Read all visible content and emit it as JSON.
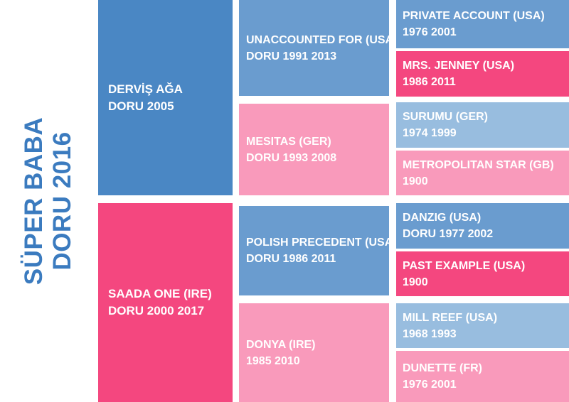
{
  "title": {
    "line1": "SÜPER BABA",
    "line2": "DORU 2016"
  },
  "sire": {
    "name": "DERVİŞ AĞA",
    "details": "DORU 2005"
  },
  "dam": {
    "name": "SAADA ONE (IRE)",
    "details": "DORU 2000 2017"
  },
  "sire_sire": {
    "name": "UNACCOUNTED FOR (USA)",
    "details": "DORU 1991 2013"
  },
  "sire_dam": {
    "name": "MESITAS (GER)",
    "details": "DORU 1993 2008"
  },
  "dam_sire": {
    "name": "POLISH PRECEDENT (USA)",
    "details": "DORU 1986 2011"
  },
  "dam_dam": {
    "name": "DONYA (IRE)",
    "details": "1985 2010"
  },
  "gen3": [
    {
      "name": "PRIVATE ACCOUNT (USA)",
      "details": "1976 2001"
    },
    {
      "name": "MRS. JENNEY (USA)",
      "details": "1986 2011"
    },
    {
      "name": "SURUMU (GER)",
      "details": "1974 1999"
    },
    {
      "name": "METROPOLITAN STAR (GB)",
      "details": "1900"
    },
    {
      "name": "DANZIG (USA)",
      "details": "DORU 1977 2002"
    },
    {
      "name": "PAST EXAMPLE (USA)",
      "details": "1900"
    },
    {
      "name": "MILL REEF (USA)",
      "details": "1968 1993"
    },
    {
      "name": "DUNETTE (FR)",
      "details": "1976 2001"
    }
  ],
  "colors": {
    "title": "#3b7bbf",
    "blue_dark": "#4a87c4",
    "blue_mid": "#6a9ccf",
    "blue_light": "#98bddf",
    "pink_dark": "#f4477f",
    "pink_mid": "#f66c99",
    "pink_light": "#f99abb"
  }
}
